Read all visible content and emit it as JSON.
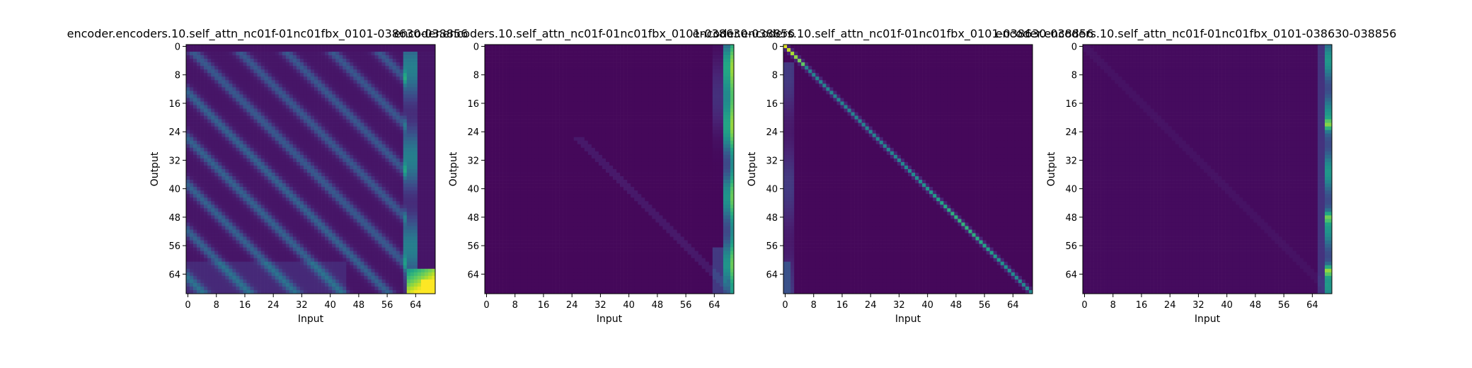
{
  "figure": {
    "background": "#ffffff"
  },
  "chart_data": [
    {
      "type": "heatmap",
      "title": "encoder.encoders.10.self_attn_nc01f-01nc01fbx_0101-038630-038856",
      "xlabel": "Input",
      "ylabel": "Output",
      "x_ticks": [
        "0",
        "8",
        "16",
        "24",
        "32",
        "40",
        "48",
        "56",
        "64"
      ],
      "y_ticks": [
        "0",
        "8",
        "16",
        "24",
        "32",
        "40",
        "48",
        "56",
        "64"
      ],
      "grid": false,
      "colormap": "viridis",
      "size": [
        70,
        70
      ],
      "pattern": "diagonal stripes parallel to the main diagonal with lower triangle stronger; bright bottom-right corner near (66-69, 65-69); highlighted column near input 62-65"
    },
    {
      "type": "heatmap",
      "title": "encoder.encoders.10.self_attn_nc01f-01nc01fbx_0101-038630-038856",
      "xlabel": "Input",
      "ylabel": "Output",
      "x_ticks": [
        "0",
        "8",
        "16",
        "24",
        "32",
        "40",
        "48",
        "56",
        "64"
      ],
      "y_ticks": [
        "0",
        "8",
        "16",
        "24",
        "32",
        "40",
        "48",
        "56",
        "64"
      ],
      "grid": false,
      "colormap": "viridis",
      "size": [
        70,
        70
      ],
      "pattern": "mostly dark; attention concentrated on last input columns (67-69), brightest near output 8-24; faint diagonal in lower half"
    },
    {
      "type": "heatmap",
      "title": "encoder.encoders.10.self_attn_nc01f-01nc01fbx_0101-038630-038856",
      "xlabel": "Input",
      "ylabel": "Output",
      "x_ticks": [
        "0",
        "8",
        "16",
        "24",
        "32",
        "40",
        "48",
        "56",
        "64"
      ],
      "y_ticks": [
        "0",
        "8",
        "16",
        "24",
        "32",
        "40",
        "48",
        "56",
        "64"
      ],
      "grid": false,
      "colormap": "viridis",
      "size": [
        70,
        70
      ],
      "pattern": "strong main diagonal, yellow at top (0-5), green-cyan through middle; faint first columns"
    },
    {
      "type": "heatmap",
      "title": "encoder.encoders.10.self_attn_nc01f-01nc01fbx_0101-038630-038856",
      "xlabel": "Input",
      "ylabel": "Output",
      "x_ticks": [
        "0",
        "8",
        "16",
        "24",
        "32",
        "40",
        "48",
        "56",
        "64"
      ],
      "y_ticks": [
        "0",
        "8",
        "16",
        "24",
        "32",
        "40",
        "48",
        "56",
        "64"
      ],
      "grid": false,
      "colormap": "viridis",
      "size": [
        70,
        70
      ],
      "pattern": "mostly dark; bright last input column (68-69) along all outputs with green peaks near 22, 48, 62; faint diagonal"
    }
  ]
}
